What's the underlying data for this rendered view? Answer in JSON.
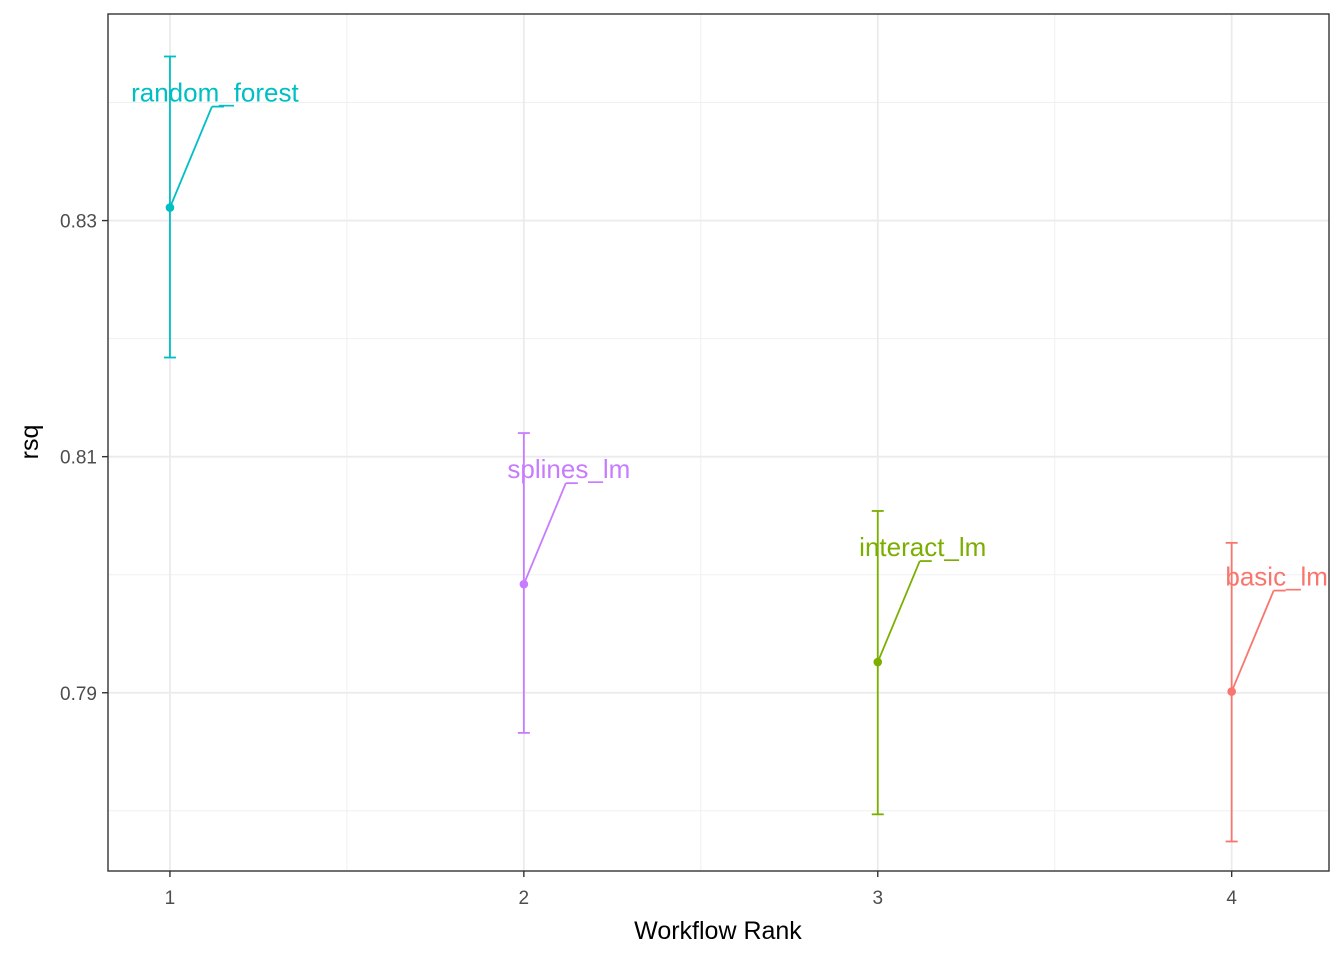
{
  "chart_data": {
    "type": "scatter",
    "xlabel": "Workflow Rank",
    "ylabel": "rsq",
    "x_ticks": [
      1,
      2,
      3,
      4
    ],
    "x_tick_labels": [
      "1",
      "2",
      "3",
      "4"
    ],
    "y_ticks": [
      0.79,
      0.81,
      0.83
    ],
    "y_tick_labels": [
      "0.79",
      "0.81",
      "0.83"
    ],
    "xlim": [
      0.825,
      4.275
    ],
    "ylim": [
      0.7749,
      0.8475
    ],
    "grid": true,
    "legend": "none",
    "series": [
      {
        "name": "random_forest",
        "x": 1,
        "y": 0.8311,
        "ymin": 0.8184,
        "ymax": 0.8439,
        "color": "#00BFC4"
      },
      {
        "name": "splines_lm",
        "x": 2,
        "y": 0.7992,
        "ymin": 0.7866,
        "ymax": 0.812,
        "color": "#C77CFF"
      },
      {
        "name": "interact_lm",
        "x": 3,
        "y": 0.7926,
        "ymin": 0.7797,
        "ymax": 0.8054,
        "color": "#7CAE00"
      },
      {
        "name": "basic_lm",
        "x": 4,
        "y": 0.7901,
        "ymin": 0.7774,
        "ymax": 0.8027,
        "color": "#F8766D"
      }
    ]
  }
}
